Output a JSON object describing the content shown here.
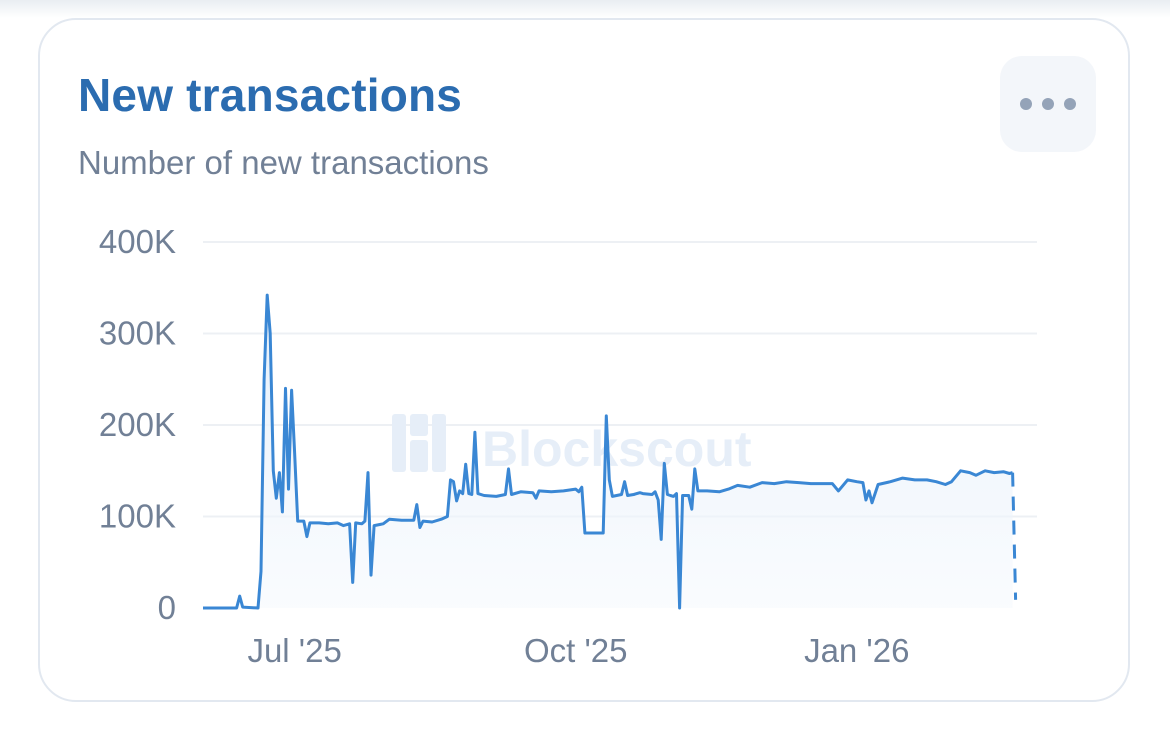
{
  "card": {
    "title": "New transactions",
    "subtitle": "Number of new transactions",
    "menu_icon": "more-horizontal-icon",
    "watermark": "Blockscout",
    "watermark_icon": "blockscout-logo-icon"
  },
  "colors": {
    "title": "#2b6cb0",
    "line": "#3a87d4",
    "area_top": "#e3eefa",
    "grid": "#edf0f4",
    "tick": "#718096"
  },
  "chart_data": {
    "type": "line",
    "title": "New transactions",
    "subtitle": "Number of new transactions",
    "xlabel": "",
    "ylabel": "",
    "ylim": [
      0,
      400000
    ],
    "y_ticks": [
      0,
      100000,
      200000,
      300000,
      400000
    ],
    "y_tick_labels": [
      "0",
      "100K",
      "200K",
      "300K",
      "400K"
    ],
    "x_ticks": [
      "2025-07-01",
      "2025-10-01",
      "2026-01-01"
    ],
    "x_tick_labels": [
      "Jul '25",
      "Oct '25",
      "Jan '26"
    ],
    "xlim": [
      "2025-06-01",
      "2026-03-01"
    ],
    "grid": true,
    "legend": "none",
    "area_fill": true,
    "series": [
      {
        "name": "",
        "style": "solid",
        "points": [
          [
            "2025-06-01",
            0
          ],
          [
            "2025-06-12",
            0
          ],
          [
            "2025-06-13",
            13000
          ],
          [
            "2025-06-14",
            1000
          ],
          [
            "2025-06-19",
            0
          ],
          [
            "2025-06-20",
            40000
          ],
          [
            "2025-06-21",
            250000
          ],
          [
            "2025-06-22",
            342000
          ],
          [
            "2025-06-23",
            300000
          ],
          [
            "2025-06-24",
            150000
          ],
          [
            "2025-06-25",
            120000
          ],
          [
            "2025-06-26",
            148000
          ],
          [
            "2025-06-27",
            105000
          ],
          [
            "2025-06-28",
            240000
          ],
          [
            "2025-06-29",
            130000
          ],
          [
            "2025-06-30",
            238000
          ],
          [
            "2025-07-01",
            170000
          ],
          [
            "2025-07-02",
            95000
          ],
          [
            "2025-07-04",
            95000
          ],
          [
            "2025-07-05",
            78000
          ],
          [
            "2025-07-06",
            93000
          ],
          [
            "2025-07-09",
            93000
          ],
          [
            "2025-07-12",
            92000
          ],
          [
            "2025-07-15",
            93000
          ],
          [
            "2025-07-17",
            90000
          ],
          [
            "2025-07-19",
            92000
          ],
          [
            "2025-07-20",
            28000
          ],
          [
            "2025-07-21",
            93000
          ],
          [
            "2025-07-23",
            92000
          ],
          [
            "2025-07-24",
            95000
          ],
          [
            "2025-07-25",
            148000
          ],
          [
            "2025-07-26",
            36000
          ],
          [
            "2025-07-27",
            90000
          ],
          [
            "2025-07-30",
            92000
          ],
          [
            "2025-08-01",
            97000
          ],
          [
            "2025-08-05",
            96000
          ],
          [
            "2025-08-09",
            96000
          ],
          [
            "2025-08-10",
            113000
          ],
          [
            "2025-08-11",
            88000
          ],
          [
            "2025-08-12",
            95000
          ],
          [
            "2025-08-15",
            94000
          ],
          [
            "2025-08-18",
            97000
          ],
          [
            "2025-08-20",
            100000
          ],
          [
            "2025-08-21",
            140000
          ],
          [
            "2025-08-22",
            138000
          ],
          [
            "2025-08-23",
            117000
          ],
          [
            "2025-08-24",
            128000
          ],
          [
            "2025-08-25",
            125000
          ],
          [
            "2025-08-26",
            157000
          ],
          [
            "2025-08-27",
            125000
          ],
          [
            "2025-08-28",
            124000
          ],
          [
            "2025-08-29",
            192000
          ],
          [
            "2025-08-30",
            125000
          ],
          [
            "2025-09-01",
            123000
          ],
          [
            "2025-09-05",
            122000
          ],
          [
            "2025-09-08",
            124000
          ],
          [
            "2025-09-09",
            152000
          ],
          [
            "2025-09-10",
            124000
          ],
          [
            "2025-09-13",
            127000
          ],
          [
            "2025-09-17",
            126000
          ],
          [
            "2025-09-18",
            120000
          ],
          [
            "2025-09-19",
            128000
          ],
          [
            "2025-09-23",
            127000
          ],
          [
            "2025-09-27",
            128000
          ],
          [
            "2025-10-01",
            130000
          ],
          [
            "2025-10-02",
            127000
          ],
          [
            "2025-10-03",
            132000
          ],
          [
            "2025-10-04",
            82000
          ],
          [
            "2025-10-07",
            82000
          ],
          [
            "2025-10-10",
            82000
          ],
          [
            "2025-10-11",
            210000
          ],
          [
            "2025-10-12",
            140000
          ],
          [
            "2025-10-13",
            122000
          ],
          [
            "2025-10-16",
            124000
          ],
          [
            "2025-10-17",
            138000
          ],
          [
            "2025-10-18",
            123000
          ],
          [
            "2025-10-20",
            124000
          ],
          [
            "2025-10-22",
            126000
          ],
          [
            "2025-10-23",
            125000
          ],
          [
            "2025-10-26",
            124000
          ],
          [
            "2025-10-27",
            127000
          ],
          [
            "2025-10-28",
            118000
          ],
          [
            "2025-10-29",
            75000
          ],
          [
            "2025-10-30",
            158000
          ],
          [
            "2025-10-31",
            124000
          ],
          [
            "2025-11-01",
            123000
          ],
          [
            "2025-11-02",
            122000
          ],
          [
            "2025-11-03",
            125000
          ],
          [
            "2025-11-04",
            0
          ],
          [
            "2025-11-05",
            123000
          ],
          [
            "2025-11-07",
            123000
          ],
          [
            "2025-11-08",
            108000
          ],
          [
            "2025-11-09",
            152000
          ],
          [
            "2025-11-10",
            128000
          ],
          [
            "2025-11-13",
            128000
          ],
          [
            "2025-11-17",
            127000
          ],
          [
            "2025-11-20",
            130000
          ],
          [
            "2025-11-23",
            134000
          ],
          [
            "2025-11-27",
            132000
          ],
          [
            "2025-12-01",
            137000
          ],
          [
            "2025-12-05",
            136000
          ],
          [
            "2025-12-09",
            138000
          ],
          [
            "2025-12-13",
            137000
          ],
          [
            "2025-12-17",
            136000
          ],
          [
            "2025-12-20",
            136000
          ],
          [
            "2025-12-24",
            136000
          ],
          [
            "2025-12-26",
            128000
          ],
          [
            "2025-12-29",
            140000
          ],
          [
            "2026-01-01",
            138000
          ],
          [
            "2026-01-03",
            137000
          ],
          [
            "2026-01-04",
            118000
          ],
          [
            "2026-01-05",
            128000
          ],
          [
            "2026-01-06",
            115000
          ],
          [
            "2026-01-08",
            135000
          ],
          [
            "2026-01-12",
            138000
          ],
          [
            "2026-01-16",
            142000
          ],
          [
            "2026-01-20",
            140000
          ],
          [
            "2026-01-24",
            140000
          ],
          [
            "2026-01-27",
            138000
          ],
          [
            "2026-01-30",
            135000
          ],
          [
            "2026-02-01",
            138000
          ],
          [
            "2026-02-04",
            150000
          ],
          [
            "2026-02-07",
            148000
          ],
          [
            "2026-02-09",
            145000
          ],
          [
            "2026-02-12",
            150000
          ],
          [
            "2026-02-15",
            148000
          ],
          [
            "2026-02-18",
            149000
          ],
          [
            "2026-02-20",
            147000
          ],
          [
            "2026-02-21",
            148000
          ]
        ]
      },
      {
        "name": "",
        "style": "dashed",
        "points": [
          [
            "2026-02-21",
            148000
          ],
          [
            "2026-02-22",
            9000
          ]
        ]
      }
    ]
  }
}
